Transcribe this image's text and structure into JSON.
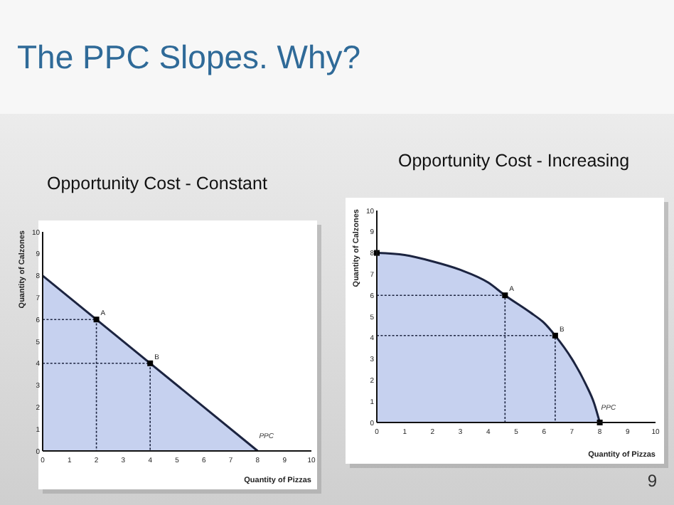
{
  "chart_data": [
    {
      "type": "other",
      "title": "The PPC Slopes. Why?",
      "annotations": [
        "9"
      ]
    },
    {
      "type": "area",
      "title": "Opportunity Cost - Constant",
      "xlabel": "Quantity of Pizzas",
      "ylabel": "Quantity of Calzones",
      "xlim": [
        0,
        10
      ],
      "ylim": [
        0,
        10
      ],
      "xticks": [
        0,
        1,
        2,
        3,
        4,
        5,
        6,
        7,
        8,
        9,
        10
      ],
      "yticks": [
        0,
        1,
        2,
        3,
        4,
        5,
        6,
        7,
        8,
        9,
        10
      ],
      "grid": false,
      "series": [
        {
          "name": "PPC",
          "color": "#1c2440",
          "x": [
            0,
            8
          ],
          "values": [
            8,
            0
          ]
        },
        {
          "type": "line",
          "line_style": "dashed",
          "color": "#1c2440",
          "x": [
            0,
            2,
            2
          ],
          "values": [
            6,
            6,
            0
          ]
        },
        {
          "type": "line",
          "line_style": "dashed",
          "color": "#1c2440",
          "x": [
            0,
            4,
            4
          ],
          "values": [
            4,
            4,
            0
          ]
        },
        {
          "type": "scatter",
          "color": "#000000",
          "marker": "square",
          "x": [
            2,
            4
          ],
          "values": [
            6,
            4
          ]
        }
      ],
      "annotations": [
        {
          "text": "A",
          "x": 2,
          "y": 6
        },
        {
          "text": "B",
          "x": 4,
          "y": 4
        }
      ]
    },
    {
      "type": "area",
      "title": "Opportunity Cost - Increasing",
      "xlabel": "Quantity of Pizzas",
      "ylabel": "Quantity of Calzones",
      "xlim": [
        0,
        10
      ],
      "ylim": [
        0,
        10
      ],
      "xticks": [
        0,
        1,
        2,
        3,
        4,
        5,
        6,
        7,
        8,
        9,
        10
      ],
      "yticks": [
        0,
        1,
        2,
        3,
        4,
        5,
        6,
        7,
        8,
        9,
        10
      ],
      "grid": false,
      "series": [
        {
          "name": "PPC",
          "color": "#1c2440",
          "x": [
            0,
            1,
            2,
            3,
            4,
            4.6,
            5.5,
            6,
            6.4,
            7,
            7.5,
            7.8,
            8
          ],
          "values": [
            8,
            7.9,
            7.6,
            7.2,
            6.6,
            6,
            5.2,
            4.7,
            4.1,
            3,
            1.8,
            0.9,
            0
          ]
        },
        {
          "type": "line",
          "line_style": "dashed",
          "color": "#1c2440",
          "x": [
            0,
            4.6,
            4.6
          ],
          "values": [
            6,
            6,
            0
          ]
        },
        {
          "type": "line",
          "line_style": "dashed",
          "color": "#1c2440",
          "x": [
            0,
            6.4,
            6.4
          ],
          "values": [
            4.1,
            4.1,
            0
          ]
        },
        {
          "type": "scatter",
          "color": "#000000",
          "marker": "square",
          "x": [
            0,
            4.6,
            6.4,
            8
          ],
          "values": [
            8,
            6,
            4.1,
            0
          ]
        }
      ],
      "annotations": [
        {
          "text": "A",
          "x": 4.6,
          "y": 6
        },
        {
          "text": "B",
          "x": 6.4,
          "y": 4.1
        }
      ]
    }
  ]
}
